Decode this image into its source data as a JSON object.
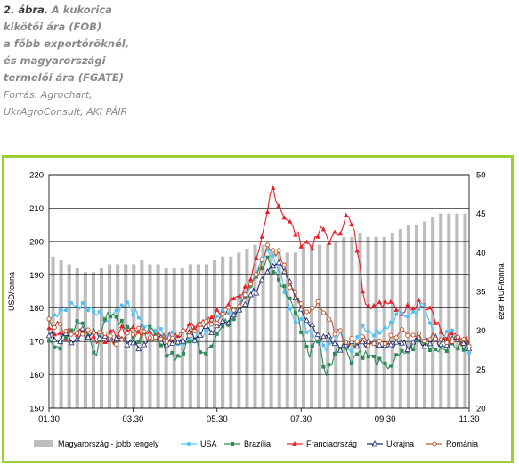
{
  "caption": {
    "figure_label": "2. ábra.",
    "title_part1": "A kukorica",
    "title_lines": [
      "kikötői ára (FOB)",
      "a főbb exportőröknél,",
      "és magyarországi",
      "termelői ára (FGATE)"
    ],
    "source_lines": [
      "Forrás: Agrochart,",
      "UkrAgroConsult, AKI PÁIR"
    ]
  },
  "colors": {
    "frame": "#9bcf3a",
    "Magyarország": "#bdbdbd",
    "USA": "#4fc3f7",
    "Brazília": "#2e8b57",
    "Franciaország": "#e8202a",
    "Ukrajna": "#1f2d6b",
    "Románia": "#c0502a"
  },
  "chart_data": {
    "type": "line",
    "ylabel": "USD/tonna",
    "y2label": "ezer HUF/tonna",
    "ylim": [
      150,
      220
    ],
    "y2lim": [
      20,
      50
    ],
    "yticks": [
      150,
      160,
      170,
      180,
      190,
      200,
      210,
      220
    ],
    "y2ticks": [
      20,
      25,
      30,
      35,
      40,
      45,
      50
    ],
    "xticks": [
      "01.30",
      "03.30",
      "05.30",
      "07.30",
      "09.30",
      "11.30"
    ],
    "legend_position": "bottom",
    "bar_series": {
      "name": "Magyarország - jobb tengely",
      "values": [
        39.5,
        39,
        38.5,
        38,
        37.5,
        37.5,
        38,
        38.5,
        38.5,
        38.5,
        38.5,
        39,
        38.5,
        38.5,
        38,
        38,
        38,
        38.5,
        38.5,
        38.5,
        39,
        39.5,
        39.5,
        40,
        40.5,
        41,
        41,
        40.5,
        40,
        40,
        40,
        41,
        41,
        41,
        41,
        41.5,
        42,
        42,
        42.5,
        42,
        42,
        42,
        42.5,
        43,
        43.5,
        43.5,
        44,
        44.5,
        45,
        45,
        45,
        45
      ]
    },
    "line_series": [
      {
        "name": "USA",
        "marker": "circle",
        "knots": [
          [
            0,
            178
          ],
          [
            0.07,
            181
          ],
          [
            0.14,
            176
          ],
          [
            0.19,
            181
          ],
          [
            0.23,
            174
          ],
          [
            0.27,
            173
          ],
          [
            0.31,
            170
          ],
          [
            0.36,
            172
          ],
          [
            0.41,
            178
          ],
          [
            0.45,
            180
          ],
          [
            0.49,
            190
          ],
          [
            0.52,
            199
          ],
          [
            0.55,
            190
          ],
          [
            0.58,
            178
          ],
          [
            0.6,
            176
          ],
          [
            0.63,
            172
          ],
          [
            0.66,
            168
          ],
          [
            0.69,
            172
          ],
          [
            0.72,
            168
          ],
          [
            0.75,
            174
          ],
          [
            0.79,
            172
          ],
          [
            0.83,
            178
          ],
          [
            0.86,
            178
          ],
          [
            0.89,
            181
          ],
          [
            0.92,
            171
          ],
          [
            0.96,
            172
          ],
          [
            1,
            167
          ]
        ]
      },
      {
        "name": "Brazília",
        "marker": "square",
        "knots": [
          [
            0,
            171
          ],
          [
            0.03,
            168
          ],
          [
            0.07,
            177
          ],
          [
            0.09,
            174
          ],
          [
            0.11,
            165
          ],
          [
            0.14,
            180
          ],
          [
            0.18,
            175
          ],
          [
            0.19,
            176
          ],
          [
            0.21,
            167
          ],
          [
            0.23,
            175
          ],
          [
            0.27,
            168
          ],
          [
            0.31,
            165
          ],
          [
            0.34,
            171
          ],
          [
            0.37,
            167
          ],
          [
            0.41,
            174
          ],
          [
            0.44,
            178
          ],
          [
            0.48,
            188
          ],
          [
            0.52,
            194
          ],
          [
            0.55,
            188
          ],
          [
            0.58,
            181
          ],
          [
            0.6,
            174
          ],
          [
            0.62,
            166
          ],
          [
            0.64,
            171
          ],
          [
            0.66,
            160
          ],
          [
            0.69,
            170
          ],
          [
            0.72,
            165
          ],
          [
            0.74,
            167
          ],
          [
            0.77,
            165
          ],
          [
            0.8,
            162
          ],
          [
            0.84,
            166
          ],
          [
            0.88,
            170
          ],
          [
            0.92,
            168
          ],
          [
            0.96,
            169
          ],
          [
            1,
            168
          ]
        ]
      },
      {
        "name": "Franciaország",
        "marker": "triangle",
        "knots": [
          [
            0,
            174
          ],
          [
            0.04,
            172
          ],
          [
            0.08,
            173
          ],
          [
            0.12,
            170
          ],
          [
            0.17,
            173
          ],
          [
            0.21,
            174
          ],
          [
            0.26,
            172
          ],
          [
            0.3,
            171
          ],
          [
            0.34,
            175
          ],
          [
            0.38,
            176
          ],
          [
            0.41,
            179
          ],
          [
            0.44,
            183
          ],
          [
            0.47,
            186
          ],
          [
            0.5,
            196
          ],
          [
            0.52,
            208
          ],
          [
            0.53,
            217
          ],
          [
            0.55,
            210
          ],
          [
            0.57,
            206
          ],
          [
            0.6,
            200
          ],
          [
            0.63,
            199
          ],
          [
            0.65,
            204
          ],
          [
            0.67,
            200
          ],
          [
            0.69,
            203
          ],
          [
            0.71,
            208
          ],
          [
            0.73,
            201
          ],
          [
            0.75,
            183
          ],
          [
            0.78,
            180
          ],
          [
            0.81,
            183
          ],
          [
            0.84,
            179
          ],
          [
            0.88,
            182
          ],
          [
            0.91,
            180
          ],
          [
            0.94,
            171
          ],
          [
            0.97,
            172
          ],
          [
            1,
            170
          ]
        ]
      },
      {
        "name": "Ukrajna",
        "marker": "triangle-open",
        "knots": [
          [
            0,
            172
          ],
          [
            0.05,
            171
          ],
          [
            0.1,
            173
          ],
          [
            0.15,
            171
          ],
          [
            0.2,
            169
          ],
          [
            0.25,
            170
          ],
          [
            0.3,
            170
          ],
          [
            0.35,
            172
          ],
          [
            0.4,
            174
          ],
          [
            0.45,
            178
          ],
          [
            0.48,
            183
          ],
          [
            0.5,
            187
          ],
          [
            0.52,
            192
          ],
          [
            0.55,
            195
          ],
          [
            0.58,
            186
          ],
          [
            0.61,
            178
          ],
          [
            0.64,
            172
          ],
          [
            0.67,
            170
          ],
          [
            0.7,
            168
          ],
          [
            0.72,
            170
          ],
          [
            0.76,
            169
          ],
          [
            0.8,
            168
          ],
          [
            0.85,
            169
          ],
          [
            0.9,
            170
          ],
          [
            0.95,
            170
          ],
          [
            1,
            169
          ]
        ]
      },
      {
        "name": "Románia",
        "marker": "circle-open",
        "knots": [
          [
            0,
            176
          ],
          [
            0.04,
            174
          ],
          [
            0.08,
            172
          ],
          [
            0.12,
            174
          ],
          [
            0.16,
            170
          ],
          [
            0.2,
            173
          ],
          [
            0.25,
            171
          ],
          [
            0.3,
            171
          ],
          [
            0.35,
            174
          ],
          [
            0.4,
            177
          ],
          [
            0.44,
            180
          ],
          [
            0.47,
            184
          ],
          [
            0.5,
            191
          ],
          [
            0.52,
            198
          ],
          [
            0.55,
            196
          ],
          [
            0.58,
            185
          ],
          [
            0.61,
            178
          ],
          [
            0.64,
            182
          ],
          [
            0.66,
            177
          ],
          [
            0.69,
            172
          ],
          [
            0.72,
            170
          ],
          [
            0.76,
            170
          ],
          [
            0.8,
            170
          ],
          [
            0.84,
            173
          ],
          [
            0.88,
            172
          ],
          [
            0.92,
            171
          ],
          [
            0.96,
            170
          ],
          [
            1,
            170
          ]
        ]
      }
    ]
  }
}
